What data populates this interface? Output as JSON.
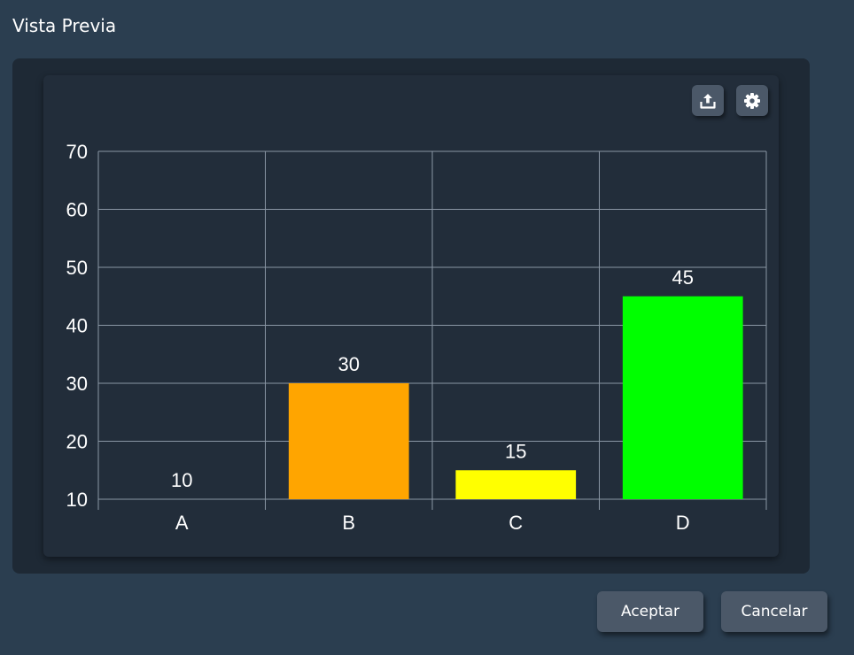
{
  "window": {
    "title": "Vista Previa"
  },
  "toolbar": {
    "icons": [
      "export-icon",
      "gear-icon"
    ]
  },
  "footer": {
    "accept_label": "Aceptar",
    "cancel_label": "Cancelar"
  },
  "chart_data": {
    "type": "bar",
    "title": "",
    "xlabel": "",
    "ylabel": "",
    "categories": [
      "A",
      "B",
      "C",
      "D"
    ],
    "values": [
      10,
      30,
      15,
      45
    ],
    "colors": [
      "#ffa500",
      "#ffa500",
      "#ffff00",
      "#00ff00"
    ],
    "ylim": [
      10,
      70
    ],
    "yticks": [
      10,
      20,
      30,
      40,
      50,
      60,
      70
    ],
    "grid": true,
    "data_labels": true
  }
}
